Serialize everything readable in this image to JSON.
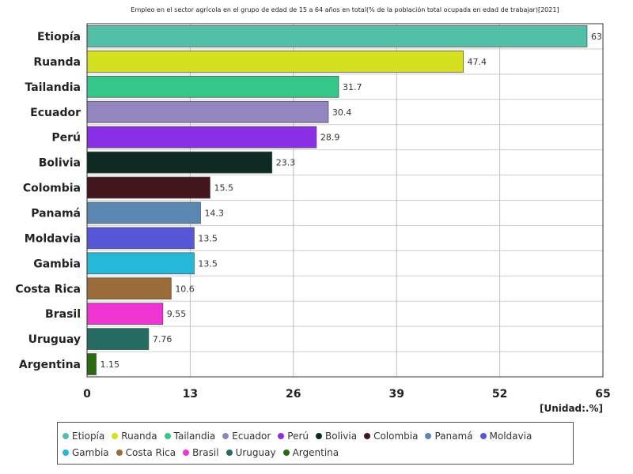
{
  "chart_data": {
    "type": "bar",
    "orientation": "horizontal",
    "title": "Empleo en el sector agrícola en el grupo de edad de 15 a 64 años en total(% de la población total ocupada en edad de trabajar)[2021]",
    "unit_label": "[Unidad:.%]",
    "xlim": [
      0,
      65
    ],
    "x_ticks": [
      "0",
      "13",
      "26",
      "39",
      "52",
      "65"
    ],
    "grid": true,
    "legend_position": "bottom",
    "categories": [
      "Etiopía",
      "Ruanda",
      "Tailandia",
      "Ecuador",
      "Perú",
      "Bolivia",
      "Colombia",
      "Panamá",
      "Moldavia",
      "Gambia",
      "Costa Rica",
      "Brasil",
      "Uruguay",
      "Argentina"
    ],
    "values": [
      63,
      47.4,
      31.7,
      30.4,
      28.9,
      23.3,
      15.5,
      14.3,
      13.5,
      13.5,
      10.6,
      9.55,
      7.76,
      1.15
    ],
    "value_labels": [
      "63",
      "47.4",
      "31.7",
      "30.4",
      "28.9",
      "23.3",
      "15.5",
      "14.3",
      "13.5",
      "13.5",
      "10.6",
      "9.55",
      "7.76",
      "1.15"
    ],
    "colors": [
      "#52bfa8",
      "#d4e01e",
      "#35c78a",
      "#9385c0",
      "#8b2fe6",
      "#0d2b22",
      "#43161c",
      "#5b88b2",
      "#5656d8",
      "#26b8d8",
      "#9b6b3a",
      "#ef34d4",
      "#256d63",
      "#2a6a12"
    ]
  }
}
